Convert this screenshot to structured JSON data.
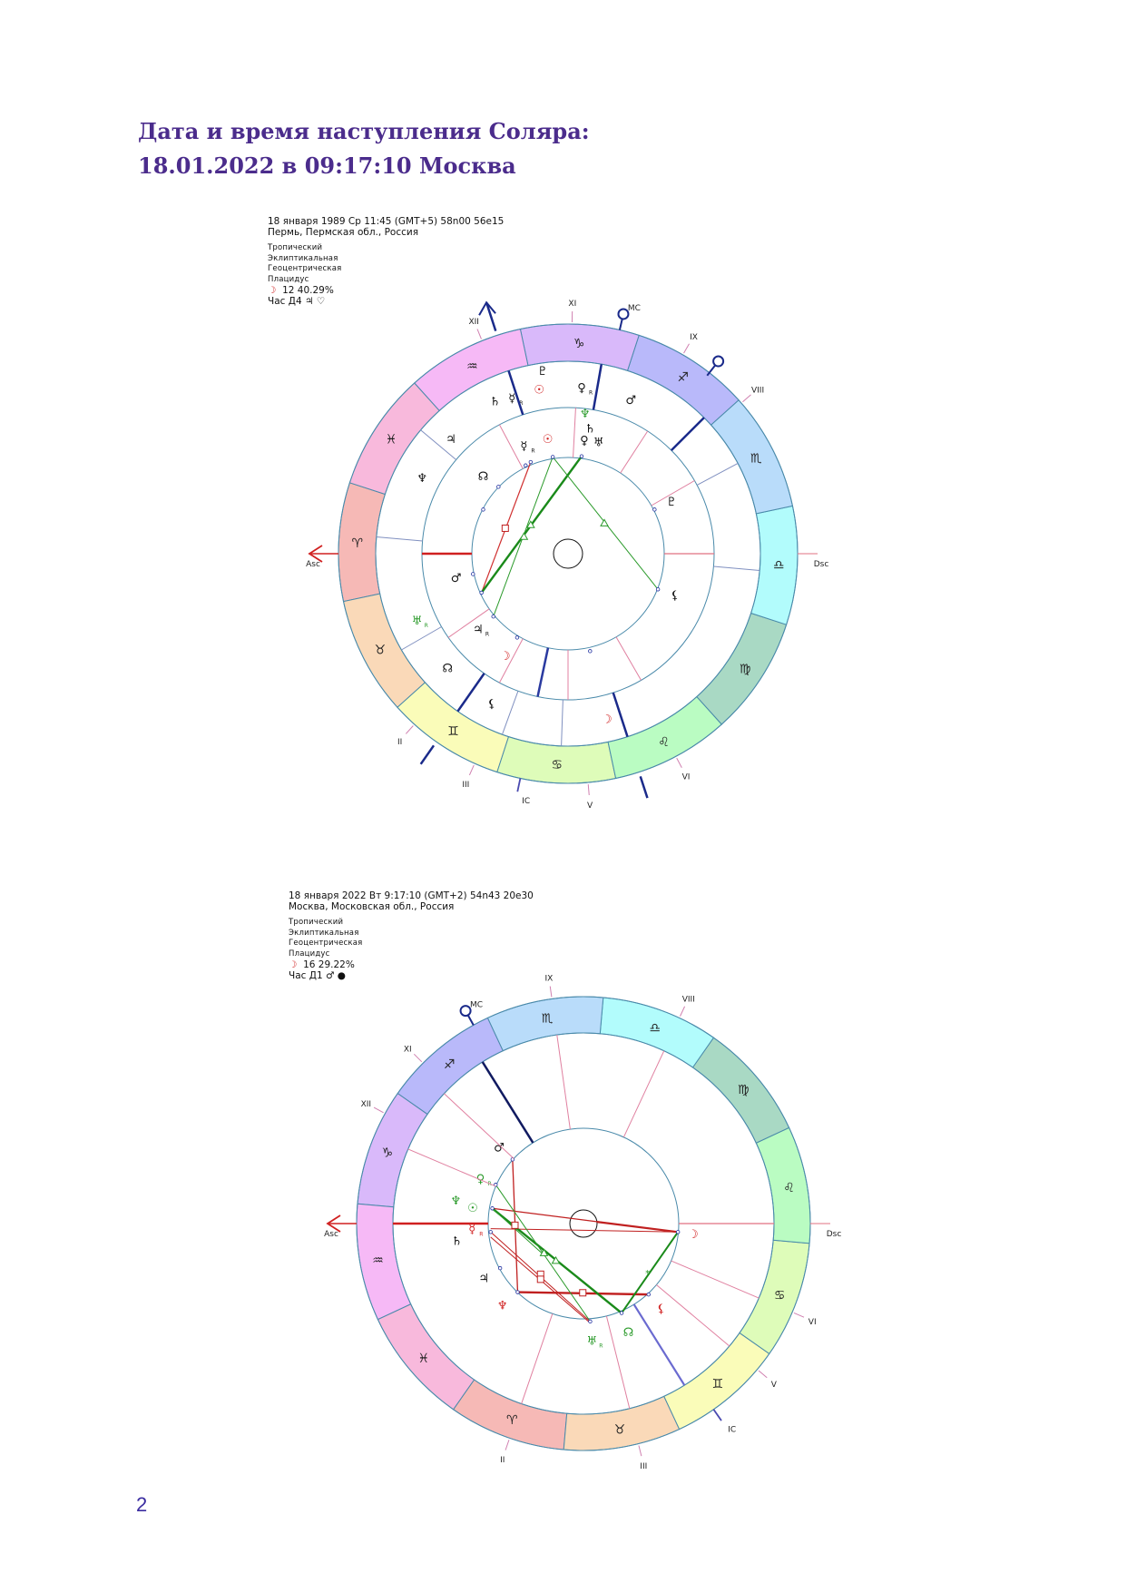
{
  "title": {
    "line1": "Дата и время наступления Соляра:",
    "line2": "18.01.2022 в 09:17:10 Москва"
  },
  "charts": [
    {
      "header": {
        "datetime": "18 января 1989  Ср  11:45 (GMT+5) 58n00  56e15",
        "place": "Пермь, Пермская обл., Россия",
        "zodiac": "Тропический",
        "coords": "Эклиптикальная",
        "center": "Геоцентрическая",
        "houses": "Плацидус",
        "moon_symbol": "☽",
        "moon_phase": "12 40.29%",
        "hour": "Час Д4",
        "hour_symbols": "♃ ♡"
      },
      "labels": {
        "asc": "Asc",
        "dsc": "Dsc",
        "mc": "MC",
        "ic": "IC",
        "houses": [
          "II",
          "III",
          "V",
          "VI",
          "VIII",
          "IX",
          "XI",
          "XII"
        ]
      },
      "planets": [
        {
          "g": "♇",
          "c": "#111"
        },
        {
          "g": "☉",
          "c": "#d02020"
        },
        {
          "g": "♄",
          "c": "#111"
        },
        {
          "g": "☿",
          "c": "#111",
          "r": "R"
        },
        {
          "g": "♀",
          "c": "#111",
          "r": "R"
        },
        {
          "g": "♂",
          "c": "#111"
        },
        {
          "g": "♃",
          "c": "#111"
        },
        {
          "g": "♆",
          "c": "#111"
        },
        {
          "g": "♅",
          "c": "#2a9a2a",
          "r": "R"
        },
        {
          "g": "☊",
          "c": "#111"
        },
        {
          "g": "⚸",
          "c": "#111"
        },
        {
          "g": "☽",
          "c": "#d02020"
        },
        {
          "g": "♆",
          "c": "#2a9a2a"
        },
        {
          "g": "♄",
          "c": "#111"
        },
        {
          "g": "♀",
          "c": "#111"
        },
        {
          "g": "♅",
          "c": "#111"
        },
        {
          "g": "☉",
          "c": "#d02020"
        },
        {
          "g": "☿",
          "c": "#111",
          "r": "R"
        },
        {
          "g": "☊",
          "c": "#111"
        },
        {
          "g": "♂",
          "c": "#111"
        },
        {
          "g": "♃",
          "c": "#111",
          "r": "R"
        },
        {
          "g": "☽",
          "c": "#d02020"
        },
        {
          "g": "⚸",
          "c": "#111"
        },
        {
          "g": "♇",
          "c": "#111"
        }
      ]
    },
    {
      "header": {
        "datetime": "18 января 2022  Вт   9:17:10 (GMT+2) 54n43  20e30",
        "place": "Москва, Московская обл., Россия",
        "zodiac": "Тропический",
        "coords": "Эклиптикальная",
        "center": "Геоцентрическая",
        "houses": "Плацидус",
        "moon_symbol": "☽",
        "moon_phase": "16 29.22%",
        "hour": "Час Д1",
        "hour_symbols": "♂ ●"
      },
      "labels": {
        "asc": "Asc",
        "dsc": "Dsc",
        "mc": "MC",
        "ic": "IC",
        "houses": [
          "II",
          "III",
          "V",
          "VI",
          "VIII",
          "IX",
          "XI",
          "XII"
        ]
      },
      "planets": [
        {
          "g": "♂",
          "c": "#111"
        },
        {
          "g": "♀",
          "c": "#2a9a2a",
          "r": "R"
        },
        {
          "g": "♆",
          "c": "#2a9a2a"
        },
        {
          "g": "☉",
          "c": "#2a9a2a"
        },
        {
          "g": "☿",
          "c": "#d02020",
          "r": "R"
        },
        {
          "g": "♄",
          "c": "#111"
        },
        {
          "g": "♃",
          "c": "#111"
        },
        {
          "g": "♆",
          "c": "#d02020"
        },
        {
          "g": "♅",
          "c": "#2a9a2a",
          "r": "R"
        },
        {
          "g": "☊",
          "c": "#2a9a2a"
        },
        {
          "g": "⚸",
          "c": "#d02020"
        },
        {
          "g": "☽",
          "c": "#d02020"
        }
      ]
    }
  ],
  "signs": [
    "♈",
    "♉",
    "♊",
    "♋",
    "♌",
    "♍",
    "♎",
    "♏",
    "♐",
    "♑",
    "♒",
    "♓"
  ],
  "sign_colors": [
    "#f6b9b6",
    "#fad9b8",
    "#fafcb9",
    "#defcb9",
    "#bafcc2",
    "#a9d9c4",
    "#b2fcfc",
    "#b9dcfa",
    "#b9b9fa",
    "#d9b9fa",
    "#f6b9f6",
    "#f8b9dc"
  ],
  "page_number": "2"
}
